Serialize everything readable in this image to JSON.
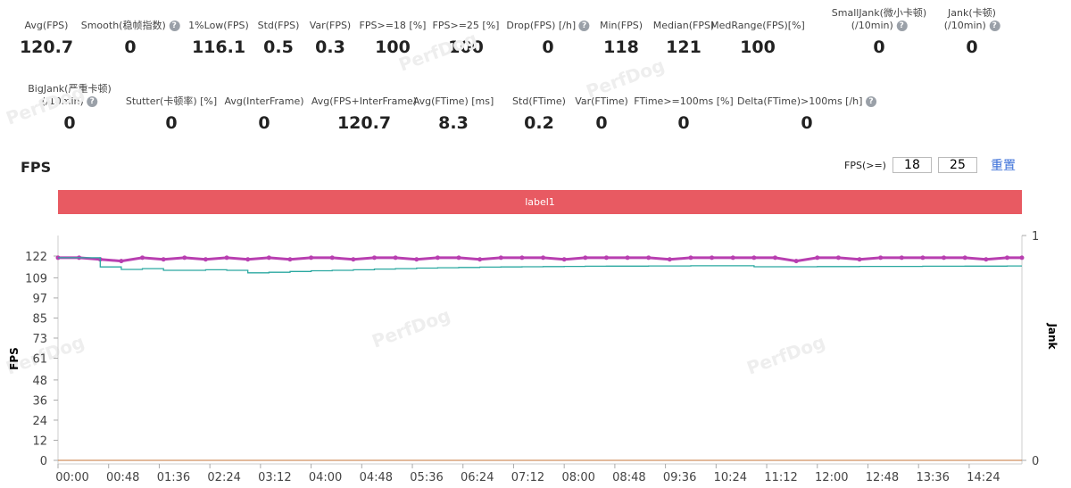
{
  "watermark": "PerfDog",
  "metrics_row1": [
    {
      "label": "Avg(FPS)",
      "value": "120.7",
      "help": false
    },
    {
      "label": "Smooth(稳帧指数)",
      "value": "0",
      "help": true
    },
    {
      "label": "1%Low(FPS)",
      "value": "116.1",
      "help": false
    },
    {
      "label": "Std(FPS)",
      "value": "0.5",
      "help": false
    },
    {
      "label": "Var(FPS)",
      "value": "0.3",
      "help": false
    },
    {
      "label": "FPS>=18 [%]",
      "value": "100",
      "help": false
    },
    {
      "label": "FPS>=25 [%]",
      "value": "100",
      "help": false
    },
    {
      "label": "Drop(FPS) [/h]",
      "value": "0",
      "help": true
    },
    {
      "label": "Min(FPS)",
      "value": "118",
      "help": false
    },
    {
      "label": "Median(FPS)",
      "value": "121",
      "help": false
    },
    {
      "label": "MedRange(FPS)[%]",
      "value": "100",
      "help": false
    },
    {
      "label": "SmallJank(微小卡顿)",
      "label2": "(/10min)",
      "value": "0",
      "help": true
    },
    {
      "label": "Jank(卡顿)",
      "label2": "(/10min)",
      "value": "0",
      "help": true
    }
  ],
  "metrics_row2": [
    {
      "label": "BigJank(严重卡顿)",
      "label2": "(/10min)",
      "value": "0",
      "help": true
    },
    {
      "label": "Stutter(卡顿率) [%]",
      "value": "0",
      "help": false
    },
    {
      "label": "Avg(InterFrame)",
      "value": "0",
      "help": false
    },
    {
      "label": "Avg(FPS+InterFrame)",
      "value": "120.7",
      "help": false
    },
    {
      "label": "Avg(FTime) [ms]",
      "value": "8.3",
      "help": false
    },
    {
      "label": "Std(FTime)",
      "value": "0.2",
      "help": false
    },
    {
      "label": "Var(FTime)",
      "value": "0",
      "help": false
    },
    {
      "label": "FTime>=100ms [%]",
      "value": "0",
      "help": false
    },
    {
      "label": "Delta(FTime)>100ms [/h]",
      "value": "0",
      "help": true
    }
  ],
  "section_title": "FPS",
  "fps_threshold": {
    "label": "FPS(>=)",
    "low": "18",
    "high": "25",
    "reset": "重置"
  },
  "label_bar": "label1",
  "colors": {
    "fps": "#b83fb0",
    "low": "#2aa8a0",
    "jank": "#d09060",
    "label": "#e85a62"
  },
  "chart_data": {
    "type": "line",
    "ylabel": "FPS",
    "y2label": "Jank",
    "yticks": [
      0,
      12,
      24,
      36,
      48,
      61,
      73,
      85,
      97,
      109,
      122
    ],
    "ylim": [
      0,
      122
    ],
    "y2ticks": [
      0,
      1
    ],
    "y2lim": [
      0,
      1
    ],
    "xticks": [
      "00:00",
      "00:48",
      "01:36",
      "02:24",
      "03:12",
      "04:00",
      "04:48",
      "05:36",
      "06:24",
      "07:12",
      "08:00",
      "08:48",
      "09:36",
      "10:24",
      "11:12",
      "12:00",
      "12:48",
      "13:36",
      "14:24"
    ],
    "xlim_seconds": [
      0,
      914
    ],
    "x_seconds": [
      0,
      20,
      40,
      60,
      80,
      100,
      120,
      140,
      160,
      180,
      200,
      220,
      240,
      260,
      280,
      300,
      320,
      340,
      360,
      380,
      400,
      420,
      440,
      460,
      480,
      500,
      520,
      540,
      560,
      580,
      600,
      620,
      640,
      660,
      680,
      700,
      720,
      740,
      760,
      780,
      800,
      820,
      840,
      860,
      880,
      900,
      914
    ],
    "series": [
      {
        "name": "FPS",
        "values": [
          121,
          121,
          120,
          119,
          121,
          120,
          121,
          120,
          121,
          120,
          121,
          120,
          121,
          121,
          120,
          121,
          121,
          120,
          121,
          121,
          120,
          121,
          121,
          121,
          120,
          121,
          121,
          121,
          121,
          120,
          121,
          121,
          121,
          121,
          121,
          119,
          121,
          121,
          120,
          121,
          121,
          121,
          121,
          121,
          120,
          121,
          121
        ]
      },
      {
        "name": "1%Low(FPS)",
        "values": [
          121,
          121,
          115.5,
          114,
          114.5,
          113.5,
          113.5,
          113.8,
          113.5,
          112,
          112.3,
          112.8,
          113.2,
          113.5,
          113.8,
          114.2,
          114.5,
          114.8,
          115,
          115.2,
          115.4,
          115.5,
          115.6,
          115.7,
          115.8,
          115.9,
          116,
          116,
          116.1,
          116.1,
          116.2,
          116.2,
          116.2,
          115.6,
          115.6,
          115.6,
          115.7,
          115.7,
          115.8,
          115.8,
          115.8,
          115.9,
          115.9,
          116,
          116,
          116.1,
          116.1
        ]
      },
      {
        "name": "Jank",
        "values": [
          0,
          0,
          0,
          0,
          0,
          0,
          0,
          0,
          0,
          0,
          0,
          0,
          0,
          0,
          0,
          0,
          0,
          0,
          0,
          0,
          0,
          0,
          0,
          0,
          0,
          0,
          0,
          0,
          0,
          0,
          0,
          0,
          0,
          0,
          0,
          0,
          0,
          0,
          0,
          0,
          0,
          0,
          0,
          0,
          0,
          0,
          0
        ]
      }
    ]
  }
}
